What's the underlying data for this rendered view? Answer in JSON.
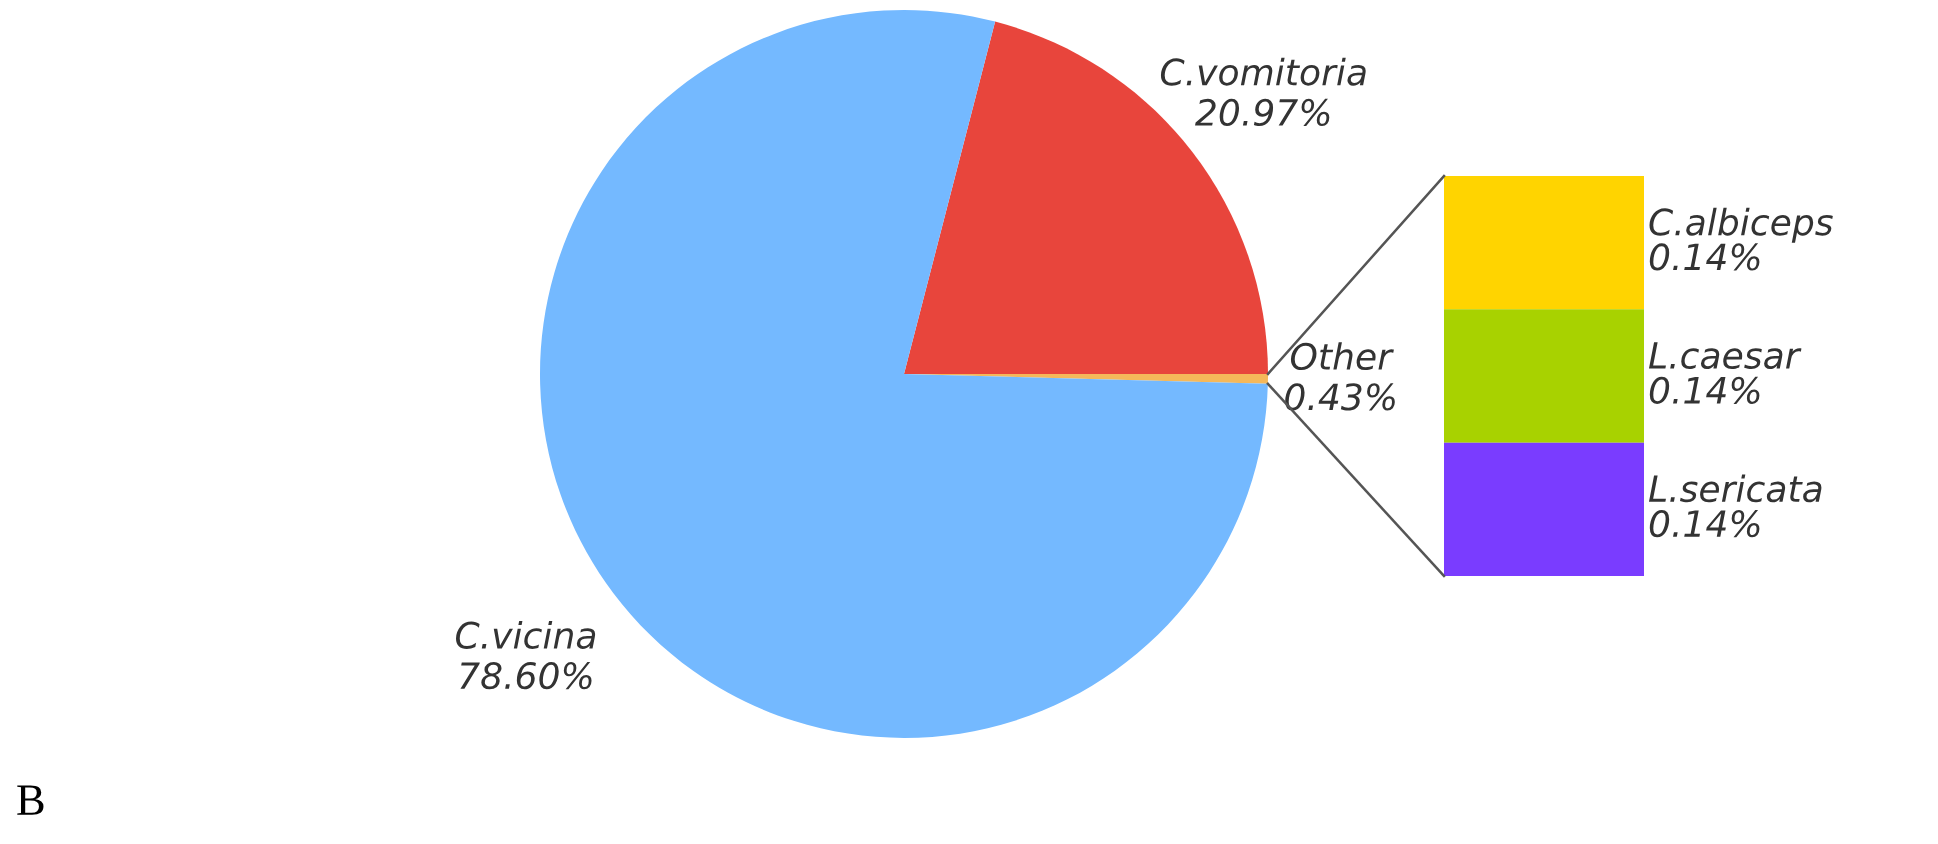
{
  "chart_data": [
    {
      "type": "pie",
      "categories": [
        "C.vomitoria",
        "Other",
        "C.vicina"
      ],
      "values": [
        20.97,
        0.43,
        78.6
      ],
      "value_labels": [
        "20.97%",
        "0.43%",
        "78.60%"
      ],
      "colors": [
        "#e8453c",
        "#f5b85a",
        "#74b9ff"
      ],
      "legend": false,
      "annotations": [
        "B"
      ]
    },
    {
      "type": "other",
      "categories": [
        "C.albiceps",
        "L.caesar",
        "L.sericata"
      ],
      "values": [
        0.14,
        0.14,
        0.14
      ],
      "value_labels": [
        "0.14%",
        "0.14%",
        "0.14%"
      ],
      "colors": [
        "#ffd400",
        "#a8d200",
        "#7a3cff"
      ]
    }
  ]
}
